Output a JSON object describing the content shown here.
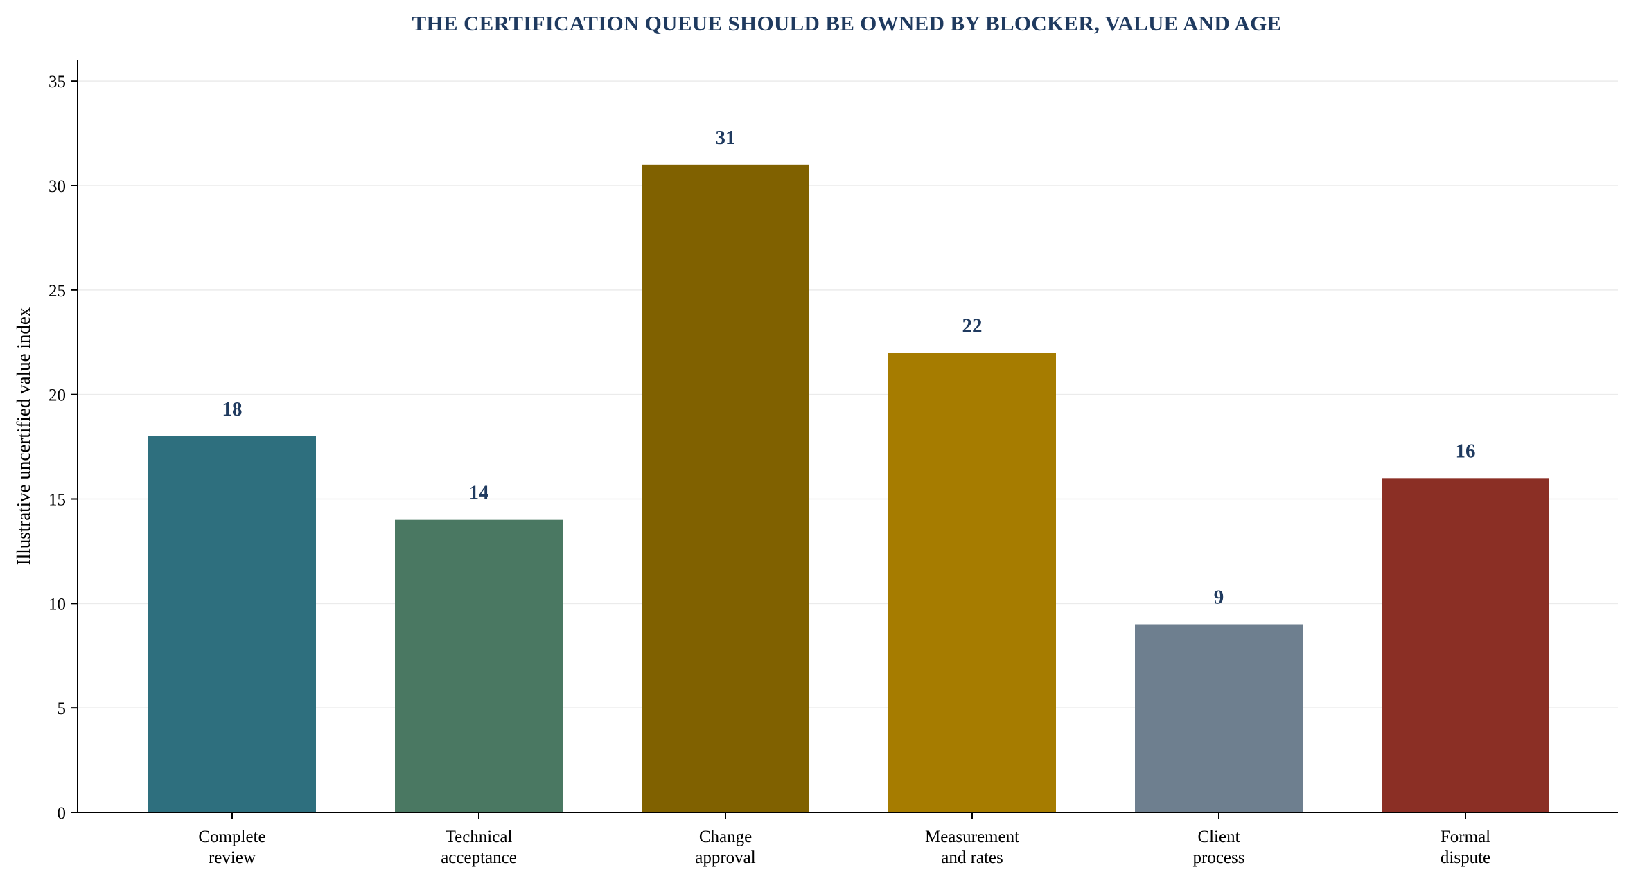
{
  "chart_data": {
    "type": "bar",
    "title": "THE CERTIFICATION QUEUE SHOULD BE OWNED BY BLOCKER, VALUE AND AGE",
    "xlabel": "",
    "ylabel": "Illustrative uncertified value index",
    "ylim": [
      0,
      36
    ],
    "yticks": [
      0,
      5,
      10,
      15,
      20,
      25,
      30,
      35
    ],
    "grid": "horizontal",
    "categories": [
      [
        "Complete",
        "review"
      ],
      [
        "Technical",
        "acceptance"
      ],
      [
        "Change",
        "approval"
      ],
      [
        "Measurement",
        "and rates"
      ],
      [
        "Client",
        "process"
      ],
      [
        "Formal",
        "dispute"
      ]
    ],
    "values": [
      18,
      14,
      31,
      22,
      9,
      16
    ],
    "colors": [
      "#2e6f7e",
      "#4a7862",
      "#806100",
      "#a67c00",
      "#6e7f8f",
      "#8b2f25"
    ]
  }
}
